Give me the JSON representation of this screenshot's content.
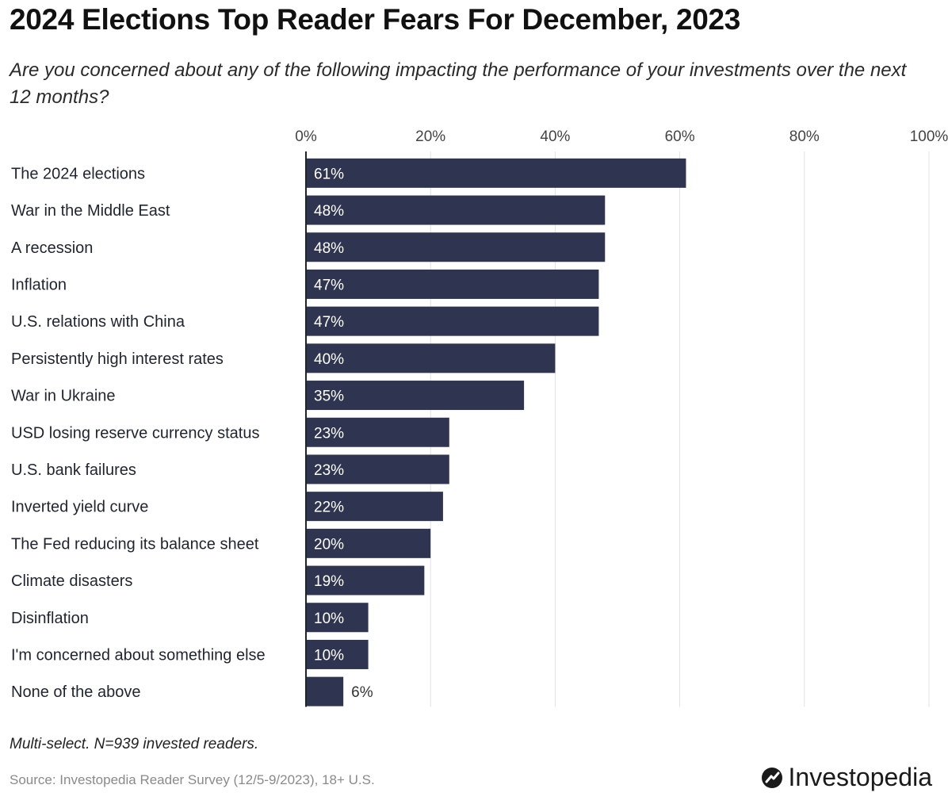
{
  "header": {
    "title": "2024 Elections Top Reader Fears For December, 2023",
    "subtitle": "Are you concerned about any of the following impacting the performance of your investments over the next 12 months?"
  },
  "footer": {
    "note": "Multi-select. N=939 invested readers.",
    "source": "Source: Investopedia Reader Survey (12/5-9/2023), 18+ U.S.",
    "brand": "Investopedia",
    "brand_icon": "investopedia-logo-icon"
  },
  "colors": {
    "bar": "#2f3550",
    "bar_label_inside": "#ffffff",
    "bar_label_outside": "#333333",
    "grid": "#e2e2e2",
    "axis": "#1f2430"
  },
  "chart_data": {
    "type": "bar",
    "orientation": "horizontal",
    "categories": [
      "The 2024 elections",
      "War in the Middle East",
      "A recession",
      "Inflation",
      "U.S. relations with China",
      "Persistently high interest rates",
      "War in Ukraine",
      "USD losing reserve currency status",
      "U.S. bank failures",
      "Inverted yield curve",
      "The Fed reducing its balance sheet",
      "Climate disasters",
      "Disinflation",
      "I'm concerned about something else",
      "None of the above"
    ],
    "values": [
      61,
      48,
      48,
      47,
      47,
      40,
      35,
      23,
      23,
      22,
      20,
      19,
      10,
      10,
      6
    ],
    "value_labels": [
      "61%",
      "48%",
      "48%",
      "47%",
      "47%",
      "40%",
      "35%",
      "23%",
      "23%",
      "22%",
      "20%",
      "19%",
      "10%",
      "10%",
      "6%"
    ],
    "x_ticks": [
      0,
      20,
      40,
      60,
      80,
      100
    ],
    "x_tick_labels": [
      "0%",
      "20%",
      "40%",
      "60%",
      "80%",
      "100%"
    ],
    "xlim": [
      0,
      100
    ],
    "grid": true,
    "tick_position": "top"
  }
}
